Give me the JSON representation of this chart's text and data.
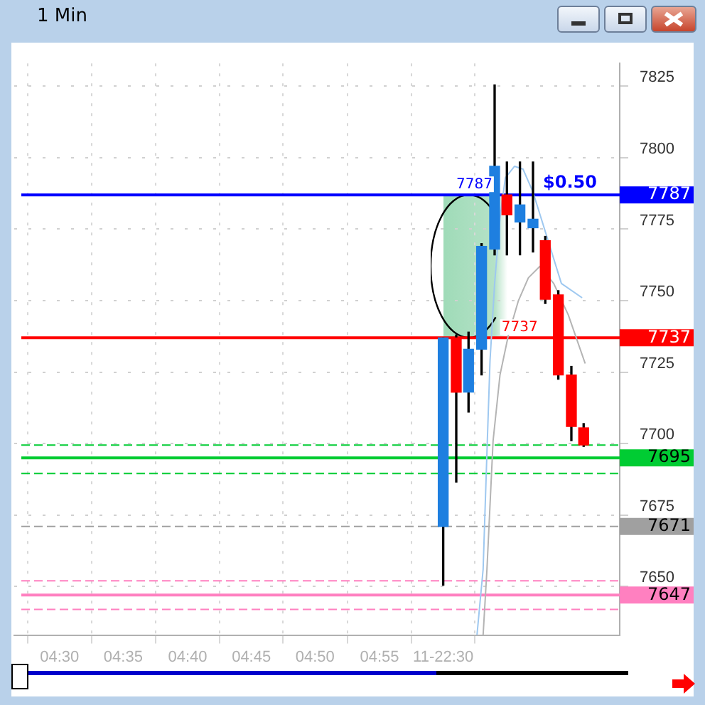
{
  "chart_data": {
    "type": "candlestick",
    "title": "1 Min",
    "x": [
      5.0,
      5.017,
      5.033,
      5.05,
      5.067,
      5.083,
      5.1,
      5.117,
      5.133,
      5.15,
      5.167,
      5.183
    ],
    "ohlc": [
      [
        7671,
        7737,
        7650.5,
        7737
      ],
      [
        7737,
        7738,
        7686.5,
        7718
      ],
      [
        7718,
        7739,
        7711,
        7733
      ],
      [
        7733,
        7770,
        7724,
        7769
      ],
      [
        7768,
        7825.5,
        7766,
        7797
      ],
      [
        7787,
        7798.5,
        7766,
        7780
      ],
      [
        7777.5,
        7798.5,
        7766,
        7783.5
      ],
      [
        7775.5,
        7798.5,
        7767,
        7778.5
      ],
      [
        7771,
        7772.5,
        7749,
        7750.5
      ],
      [
        7752,
        7753.5,
        7722.5,
        7724
      ],
      [
        7724,
        7727,
        7701,
        7706
      ],
      [
        7705.5,
        7707,
        7699,
        7699.5
      ]
    ],
    "colors": [
      "#1e7fe0",
      "#ff0000",
      "#1e7fe0",
      "#1e7fe0",
      "#1e7fe0",
      "#ff0000",
      "#1e7fe0",
      "#1e7fe0",
      "#ff0000",
      "#ff0000",
      "#ff0000",
      "#ff0000"
    ],
    "series": [
      {
        "type": "line",
        "color": "#9ec8f0",
        "x": [
          5.044,
          5.052,
          5.057,
          5.061,
          5.067,
          5.074,
          5.081,
          5.093,
          5.104,
          5.117,
          5.154,
          5.181
        ],
        "values": [
          7633,
          7656,
          7697,
          7729,
          7756,
          7779,
          7793,
          7797,
          7796,
          7788,
          7756,
          7751
        ]
      },
      {
        "type": "line",
        "color": "#b4b4b4",
        "x": [
          5.052,
          5.057,
          5.065,
          5.074,
          5.085,
          5.098,
          5.111,
          5.126,
          5.144,
          5.163,
          5.185
        ],
        "values": [
          7633,
          7656,
          7701,
          7724,
          7738,
          7750,
          7758,
          7762,
          7756,
          7745,
          7728
        ]
      }
    ],
    "xlim": [
      4.441,
      5.23
    ],
    "xticks": [
      {
        "value": 4.5,
        "label": "04:30"
      },
      {
        "value": 4.583,
        "label": "04:35"
      },
      {
        "value": 4.667,
        "label": "04:40"
      },
      {
        "value": 4.75,
        "label": "04:45"
      },
      {
        "value": 4.833,
        "label": "04:50"
      },
      {
        "value": 4.917,
        "label": "04:55"
      },
      {
        "value": 5.0,
        "label": "11-22:30"
      }
    ],
    "ylim": [
      7633,
      7833
    ],
    "yticks": [
      7650,
      7675,
      7700,
      7725,
      7750,
      7775,
      7800,
      7825
    ],
    "grid": true,
    "legend": false,
    "ref_lines": [
      {
        "axis": "y",
        "value": 7787,
        "label": "7787",
        "color": "#0000ff",
        "line_style": "solid"
      },
      {
        "axis": "y",
        "value": 7737,
        "label": "7737",
        "color": "#ff0000",
        "line_style": "solid"
      },
      {
        "axis": "y",
        "value": 7699.5,
        "color": "#00cc33",
        "line_style": "dashed"
      },
      {
        "axis": "y",
        "value": 7695,
        "label": "7695",
        "color": "#00cc33",
        "line_style": "solid"
      },
      {
        "axis": "y",
        "value": 7689.5,
        "color": "#00cc33",
        "line_style": "dashed"
      },
      {
        "axis": "y",
        "value": 7671,
        "label": "7671",
        "color": "#a0a0a0",
        "line_style": "dashed"
      },
      {
        "axis": "y",
        "value": 7652,
        "color": "#ff80c0",
        "line_style": "dashed"
      },
      {
        "axis": "y",
        "value": 7647,
        "label": "7647",
        "color": "#ff80c0",
        "line_style": "solid"
      },
      {
        "axis": "y",
        "value": 7642,
        "color": "#ff80c0",
        "line_style": "dashed"
      }
    ],
    "annotations": [
      {
        "text": "$0.50",
        "x": 5.13,
        "y": 7787
      },
      {
        "text": "7787",
        "x": 5.017,
        "y": 7787
      },
      {
        "text": "7737",
        "x": 5.076,
        "y": 7737
      }
    ]
  }
}
